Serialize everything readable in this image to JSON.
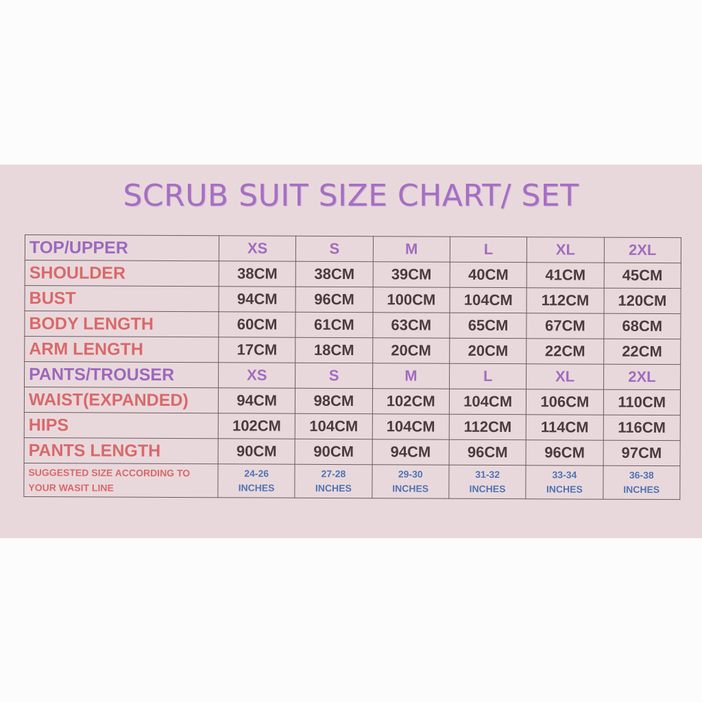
{
  "title": "SCRUB SUIT SIZE CHART/ SET",
  "sizes": [
    "XS",
    "S",
    "M",
    "L",
    "XL",
    "2XL"
  ],
  "top_header": "TOP/UPPER",
  "top_rows": [
    {
      "label": "SHOULDER",
      "values": [
        "38CM",
        "38CM",
        "39CM",
        "40CM",
        "41CM",
        "45CM"
      ]
    },
    {
      "label": "BUST",
      "values": [
        "94CM",
        "96CM",
        "100CM",
        "104CM",
        "112CM",
        "120CM"
      ]
    },
    {
      "label": "BODY LENGTH",
      "values": [
        "60CM",
        "61CM",
        "63CM",
        "65CM",
        "67CM",
        "68CM"
      ]
    },
    {
      "label": "ARM LENGTH",
      "values": [
        "17CM",
        "18CM",
        "20CM",
        "20CM",
        "22CM",
        "22CM"
      ]
    }
  ],
  "pants_header": "PANTS/TROUSER",
  "pants_rows": [
    {
      "label": "WAIST(EXPANDED)",
      "values": [
        "94CM",
        "98CM",
        "102CM",
        "104CM",
        "106CM",
        "110CM"
      ]
    },
    {
      "label": "HIPS",
      "values": [
        "102CM",
        "104CM",
        "104CM",
        "112CM",
        "114CM",
        "116CM"
      ]
    },
    {
      "label": "PANTS LENGTH",
      "values": [
        "90CM",
        "90CM",
        "94CM",
        "96CM",
        "96CM",
        "97CM"
      ]
    }
  ],
  "suggested": {
    "label_line1": "SUGGESTED SIZE ACCORDING TO",
    "label_line2": "YOUR WASIT LINE",
    "ranges": [
      "24-26",
      "27-28",
      "29-30",
      "31-32",
      "33-34",
      "36-38"
    ],
    "unit": "INCHES"
  },
  "colors": {
    "title": "#a56fc2",
    "label": "#d9686a",
    "value": "#4a3b3d",
    "suggested": "#4f73b5",
    "background": "#e9d8db"
  }
}
